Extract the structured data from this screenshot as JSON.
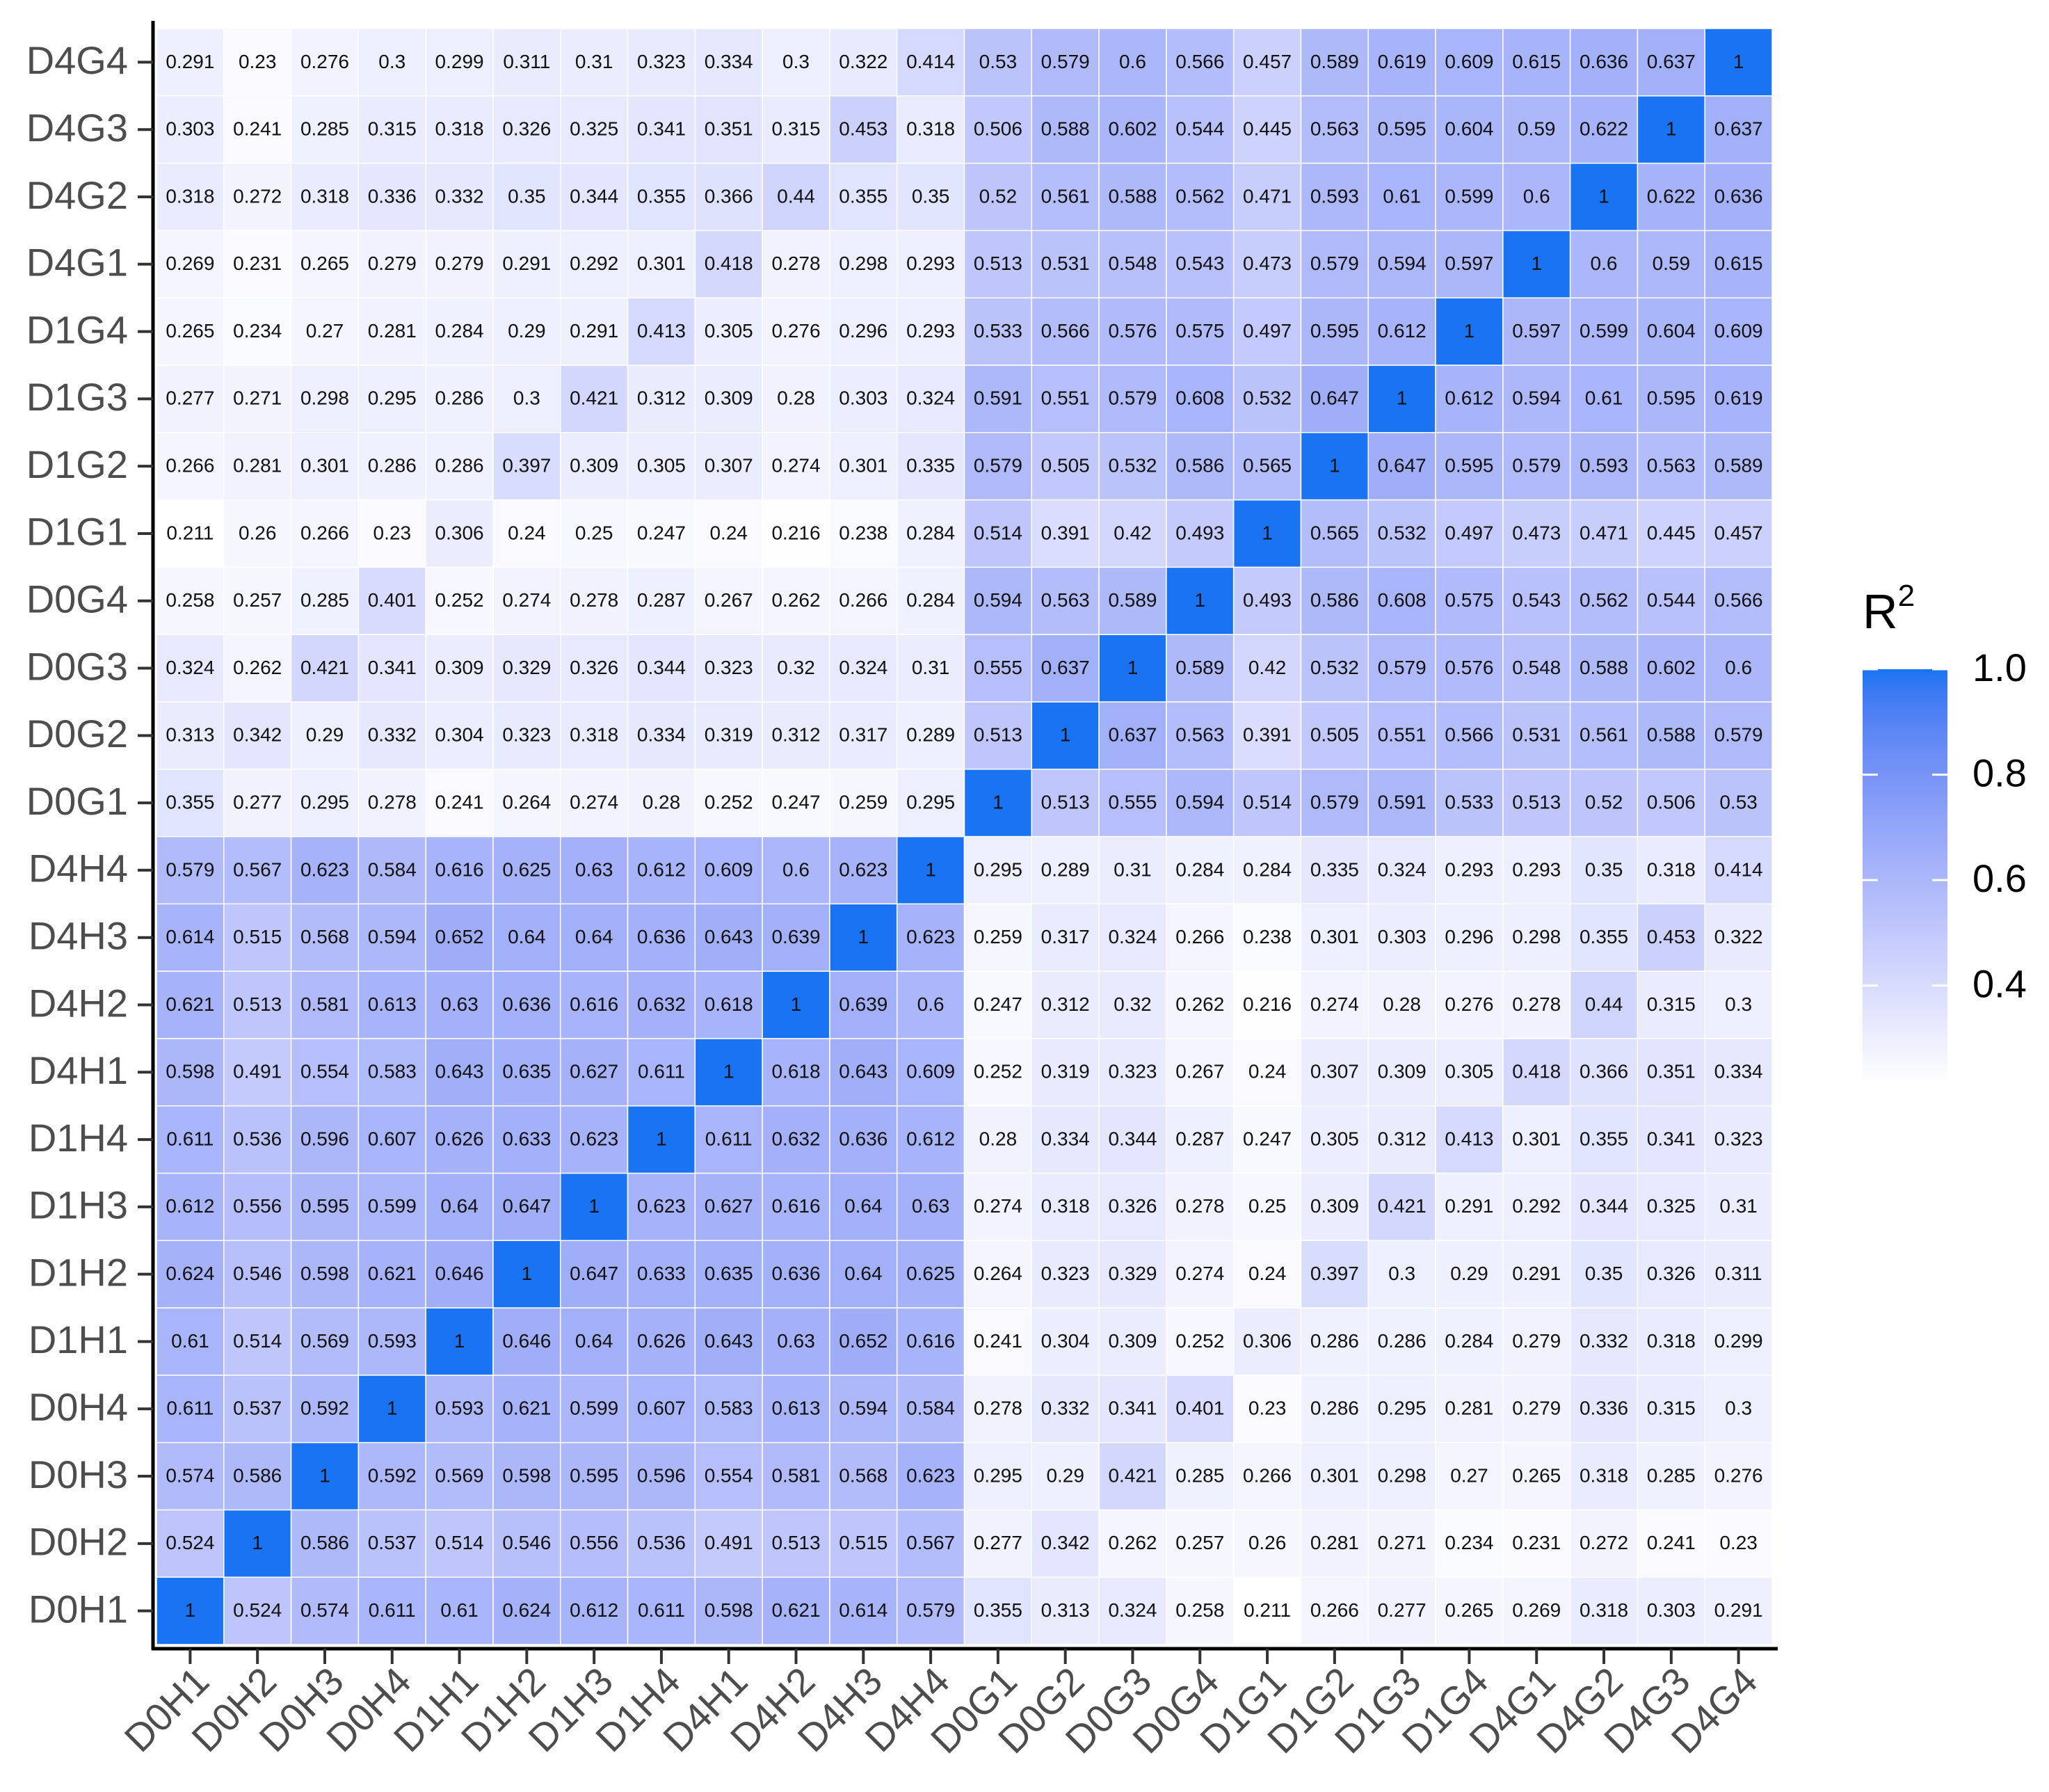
{
  "chart_data": {
    "type": "heatmap",
    "x_categories": [
      "D0H1",
      "D0H2",
      "D0H3",
      "D0H4",
      "D1H1",
      "D1H2",
      "D1H3",
      "D1H4",
      "D4H1",
      "D4H2",
      "D4H3",
      "D4H4",
      "D0G1",
      "D0G2",
      "D0G3",
      "D0G4",
      "D1G1",
      "D1G2",
      "D1G3",
      "D1G4",
      "D4G1",
      "D4G2",
      "D4G3",
      "D4G4"
    ],
    "y_categories": [
      "D0H1",
      "D0H2",
      "D0H3",
      "D0H4",
      "D1H1",
      "D1H2",
      "D1H3",
      "D1H4",
      "D4H1",
      "D4H2",
      "D4H3",
      "D4H4",
      "D0G1",
      "D0G2",
      "D0G3",
      "D0G4",
      "D1G1",
      "D1G2",
      "D1G3",
      "D1G4",
      "D4G1",
      "D4G2",
      "D4G3",
      "D4G4"
    ],
    "values": [
      [
        1,
        0.524,
        0.574,
        0.611,
        0.61,
        0.624,
        0.612,
        0.611,
        0.598,
        0.621,
        0.614,
        0.579,
        0.355,
        0.313,
        0.324,
        0.258,
        0.211,
        0.266,
        0.277,
        0.265,
        0.269,
        0.318,
        0.303,
        0.291
      ],
      [
        0.524,
        1,
        0.586,
        0.537,
        0.514,
        0.546,
        0.556,
        0.536,
        0.491,
        0.513,
        0.515,
        0.567,
        0.277,
        0.342,
        0.262,
        0.257,
        0.26,
        0.281,
        0.271,
        0.234,
        0.231,
        0.272,
        0.241,
        0.23
      ],
      [
        0.574,
        0.586,
        1,
        0.592,
        0.569,
        0.598,
        0.595,
        0.596,
        0.554,
        0.581,
        0.568,
        0.623,
        0.295,
        0.29,
        0.421,
        0.285,
        0.266,
        0.301,
        0.298,
        0.27,
        0.265,
        0.318,
        0.285,
        0.276
      ],
      [
        0.611,
        0.537,
        0.592,
        1,
        0.593,
        0.621,
        0.599,
        0.607,
        0.583,
        0.613,
        0.594,
        0.584,
        0.278,
        0.332,
        0.341,
        0.401,
        0.23,
        0.286,
        0.295,
        0.281,
        0.279,
        0.336,
        0.315,
        0.3
      ],
      [
        0.61,
        0.514,
        0.569,
        0.593,
        1,
        0.646,
        0.64,
        0.626,
        0.643,
        0.63,
        0.652,
        0.616,
        0.241,
        0.304,
        0.309,
        0.252,
        0.306,
        0.286,
        0.286,
        0.284,
        0.279,
        0.332,
        0.318,
        0.299
      ],
      [
        0.624,
        0.546,
        0.598,
        0.621,
        0.646,
        1,
        0.647,
        0.633,
        0.635,
        0.636,
        0.64,
        0.625,
        0.264,
        0.323,
        0.329,
        0.274,
        0.24,
        0.397,
        0.3,
        0.29,
        0.291,
        0.35,
        0.326,
        0.311
      ],
      [
        0.612,
        0.556,
        0.595,
        0.599,
        0.64,
        0.647,
        1,
        0.623,
        0.627,
        0.616,
        0.64,
        0.63,
        0.274,
        0.318,
        0.326,
        0.278,
        0.25,
        0.309,
        0.421,
        0.291,
        0.292,
        0.344,
        0.325,
        0.31
      ],
      [
        0.611,
        0.536,
        0.596,
        0.607,
        0.626,
        0.633,
        0.623,
        1,
        0.611,
        0.632,
        0.636,
        0.612,
        0.28,
        0.334,
        0.344,
        0.287,
        0.247,
        0.305,
        0.312,
        0.413,
        0.301,
        0.355,
        0.341,
        0.323
      ],
      [
        0.598,
        0.491,
        0.554,
        0.583,
        0.643,
        0.635,
        0.627,
        0.611,
        1,
        0.618,
        0.643,
        0.609,
        0.252,
        0.319,
        0.323,
        0.267,
        0.24,
        0.307,
        0.309,
        0.305,
        0.418,
        0.366,
        0.351,
        0.334
      ],
      [
        0.621,
        0.513,
        0.581,
        0.613,
        0.63,
        0.636,
        0.616,
        0.632,
        0.618,
        1,
        0.639,
        0.6,
        0.247,
        0.312,
        0.32,
        0.262,
        0.216,
        0.274,
        0.28,
        0.276,
        0.278,
        0.44,
        0.315,
        0.3
      ],
      [
        0.614,
        0.515,
        0.568,
        0.594,
        0.652,
        0.64,
        0.64,
        0.636,
        0.643,
        0.639,
        1,
        0.623,
        0.259,
        0.317,
        0.324,
        0.266,
        0.238,
        0.301,
        0.303,
        0.296,
        0.298,
        0.355,
        0.453,
        0.322
      ],
      [
        0.579,
        0.567,
        0.623,
        0.584,
        0.616,
        0.625,
        0.63,
        0.612,
        0.609,
        0.6,
        0.623,
        1,
        0.295,
        0.289,
        0.31,
        0.284,
        0.284,
        0.335,
        0.324,
        0.293,
        0.293,
        0.35,
        0.318,
        0.414
      ],
      [
        0.355,
        0.277,
        0.295,
        0.278,
        0.241,
        0.264,
        0.274,
        0.28,
        0.252,
        0.247,
        0.259,
        0.295,
        1,
        0.513,
        0.555,
        0.594,
        0.514,
        0.579,
        0.591,
        0.533,
        0.513,
        0.52,
        0.506,
        0.53
      ],
      [
        0.313,
        0.342,
        0.29,
        0.332,
        0.304,
        0.323,
        0.318,
        0.334,
        0.319,
        0.312,
        0.317,
        0.289,
        0.513,
        1,
        0.637,
        0.563,
        0.391,
        0.505,
        0.551,
        0.566,
        0.531,
        0.561,
        0.588,
        0.579
      ],
      [
        0.324,
        0.262,
        0.421,
        0.341,
        0.309,
        0.329,
        0.326,
        0.344,
        0.323,
        0.32,
        0.324,
        0.31,
        0.555,
        0.637,
        1,
        0.589,
        0.42,
        0.532,
        0.579,
        0.576,
        0.548,
        0.588,
        0.602,
        0.6
      ],
      [
        0.258,
        0.257,
        0.285,
        0.401,
        0.252,
        0.274,
        0.278,
        0.287,
        0.267,
        0.262,
        0.266,
        0.284,
        0.594,
        0.563,
        0.589,
        1,
        0.493,
        0.586,
        0.608,
        0.575,
        0.543,
        0.562,
        0.544,
        0.566
      ],
      [
        0.211,
        0.26,
        0.266,
        0.23,
        0.306,
        0.24,
        0.25,
        0.247,
        0.24,
        0.216,
        0.238,
        0.284,
        0.514,
        0.391,
        0.42,
        0.493,
        1,
        0.565,
        0.532,
        0.497,
        0.473,
        0.471,
        0.445,
        0.457
      ],
      [
        0.266,
        0.281,
        0.301,
        0.286,
        0.286,
        0.397,
        0.309,
        0.305,
        0.307,
        0.274,
        0.301,
        0.335,
        0.579,
        0.505,
        0.532,
        0.586,
        0.565,
        1,
        0.647,
        0.595,
        0.579,
        0.593,
        0.563,
        0.589
      ],
      [
        0.277,
        0.271,
        0.298,
        0.295,
        0.286,
        0.3,
        0.421,
        0.312,
        0.309,
        0.28,
        0.303,
        0.324,
        0.591,
        0.551,
        0.579,
        0.608,
        0.532,
        0.647,
        1,
        0.612,
        0.594,
        0.61,
        0.595,
        0.619
      ],
      [
        0.265,
        0.234,
        0.27,
        0.281,
        0.284,
        0.29,
        0.291,
        0.413,
        0.305,
        0.276,
        0.296,
        0.293,
        0.533,
        0.566,
        0.576,
        0.575,
        0.497,
        0.595,
        0.612,
        1,
        0.597,
        0.599,
        0.604,
        0.609
      ],
      [
        0.269,
        0.231,
        0.265,
        0.279,
        0.279,
        0.291,
        0.292,
        0.301,
        0.418,
        0.278,
        0.298,
        0.293,
        0.513,
        0.531,
        0.548,
        0.543,
        0.473,
        0.579,
        0.594,
        0.597,
        1,
        0.6,
        0.59,
        0.615
      ],
      [
        0.318,
        0.272,
        0.318,
        0.336,
        0.332,
        0.35,
        0.344,
        0.355,
        0.366,
        0.44,
        0.355,
        0.35,
        0.52,
        0.561,
        0.588,
        0.562,
        0.471,
        0.593,
        0.61,
        0.599,
        0.6,
        1,
        0.622,
        0.636
      ],
      [
        0.303,
        0.241,
        0.285,
        0.315,
        0.318,
        0.326,
        0.325,
        0.341,
        0.351,
        0.315,
        0.453,
        0.318,
        0.506,
        0.588,
        0.602,
        0.544,
        0.445,
        0.563,
        0.595,
        0.604,
        0.59,
        0.622,
        1,
        0.637
      ],
      [
        0.291,
        0.23,
        0.276,
        0.3,
        0.299,
        0.311,
        0.31,
        0.323,
        0.334,
        0.3,
        0.322,
        0.414,
        0.53,
        0.579,
        0.6,
        0.566,
        0.457,
        0.589,
        0.619,
        0.609,
        0.615,
        0.636,
        0.637,
        1
      ]
    ],
    "colorbar_title": "R²",
    "zlim": [
      0.211,
      1
    ],
    "zticks": [
      {
        "value": 1,
        "label": "1.0"
      },
      0.8,
      0.6,
      0.4
    ],
    "colors": [
      "#ffffff",
      "#1a73f2"
    ]
  }
}
